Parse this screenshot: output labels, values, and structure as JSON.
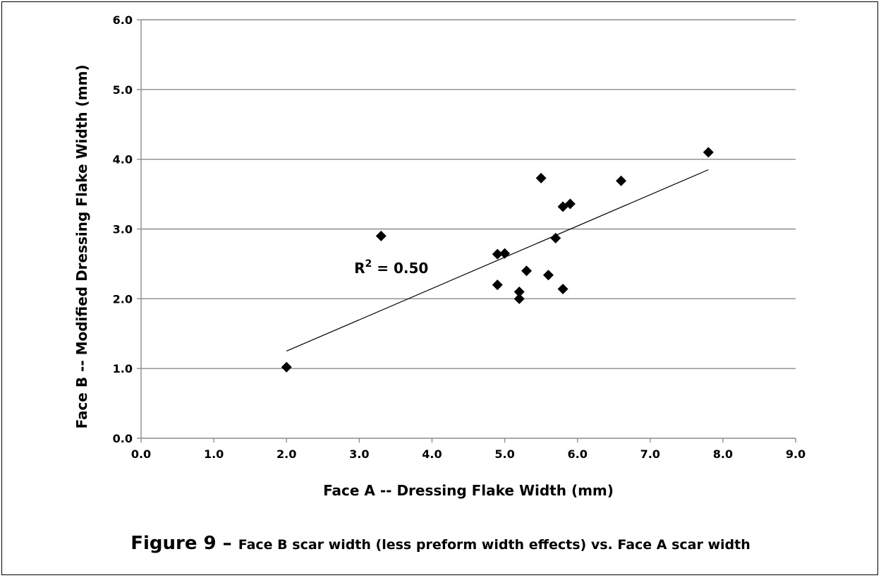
{
  "chart_data": {
    "type": "scatter",
    "title": "",
    "xlabel": "Face A --  Dressing Flake Width (mm)",
    "ylabel": "Face B -- Modified Dressing Flake Width (mm)",
    "xlim": [
      0,
      9
    ],
    "ylim": [
      0,
      6
    ],
    "xticks": [
      "0.0",
      "1.0",
      "2.0",
      "3.0",
      "4.0",
      "5.0",
      "6.0",
      "7.0",
      "8.0",
      "9.0"
    ],
    "yticks": [
      "0.0",
      "1.0",
      "2.0",
      "3.0",
      "4.0",
      "5.0",
      "6.0"
    ],
    "grid": "horizontal",
    "marker": "diamond",
    "marker_color": "#000000",
    "points": [
      {
        "x": 2.0,
        "y": 1.02
      },
      {
        "x": 3.3,
        "y": 2.9
      },
      {
        "x": 4.9,
        "y": 2.64
      },
      {
        "x": 5.0,
        "y": 2.65
      },
      {
        "x": 4.9,
        "y": 2.2
      },
      {
        "x": 5.2,
        "y": 2.1
      },
      {
        "x": 5.2,
        "y": 2.0
      },
      {
        "x": 5.3,
        "y": 2.4
      },
      {
        "x": 5.5,
        "y": 3.73
      },
      {
        "x": 5.6,
        "y": 2.34
      },
      {
        "x": 5.7,
        "y": 2.87
      },
      {
        "x": 5.8,
        "y": 3.32
      },
      {
        "x": 5.9,
        "y": 3.36
      },
      {
        "x": 5.8,
        "y": 2.14
      },
      {
        "x": 6.6,
        "y": 3.69
      },
      {
        "x": 7.8,
        "y": 4.1
      }
    ],
    "trendline": {
      "x": [
        2.0,
        7.8
      ],
      "y": [
        1.25,
        3.85
      ]
    },
    "annotation": {
      "base": "R",
      "sup": "2",
      "text": " = 0.50",
      "x": 2.93,
      "y": 2.37
    }
  },
  "caption": {
    "lead": "Figure 9 – ",
    "rest": "Face B scar width (less preform width effects) vs. Face A scar width"
  }
}
